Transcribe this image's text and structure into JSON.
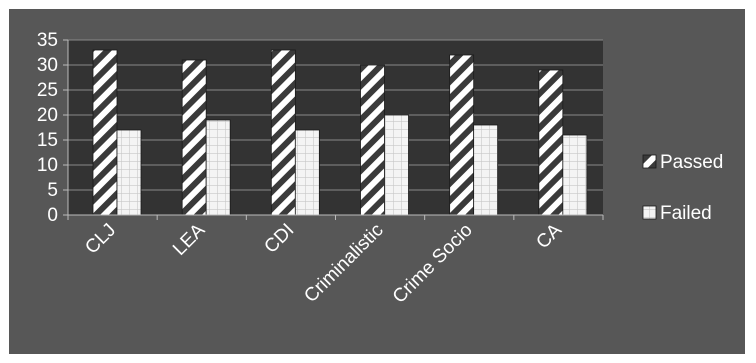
{
  "chart_data": {
    "type": "bar",
    "categories": [
      "CLJ",
      "LEA",
      "CDI",
      "Criminalistic",
      "Crime Socio",
      "CA"
    ],
    "series": [
      {
        "name": "Passed",
        "values": [
          33,
          31,
          33,
          30,
          32,
          29
        ],
        "pattern": "diagonal-stripes"
      },
      {
        "name": "Failed",
        "values": [
          17,
          19,
          17,
          20,
          18,
          16
        ],
        "pattern": "grid"
      }
    ],
    "ylim": [
      0,
      35
    ],
    "yticks": [
      0,
      5,
      10,
      15,
      20,
      25,
      30,
      35
    ],
    "grid": true,
    "legend": "right",
    "colors": {
      "background": "#575757",
      "plot_area": "#333333",
      "bar_stroke": "#1a1a1a",
      "text": "#ffffff"
    }
  }
}
